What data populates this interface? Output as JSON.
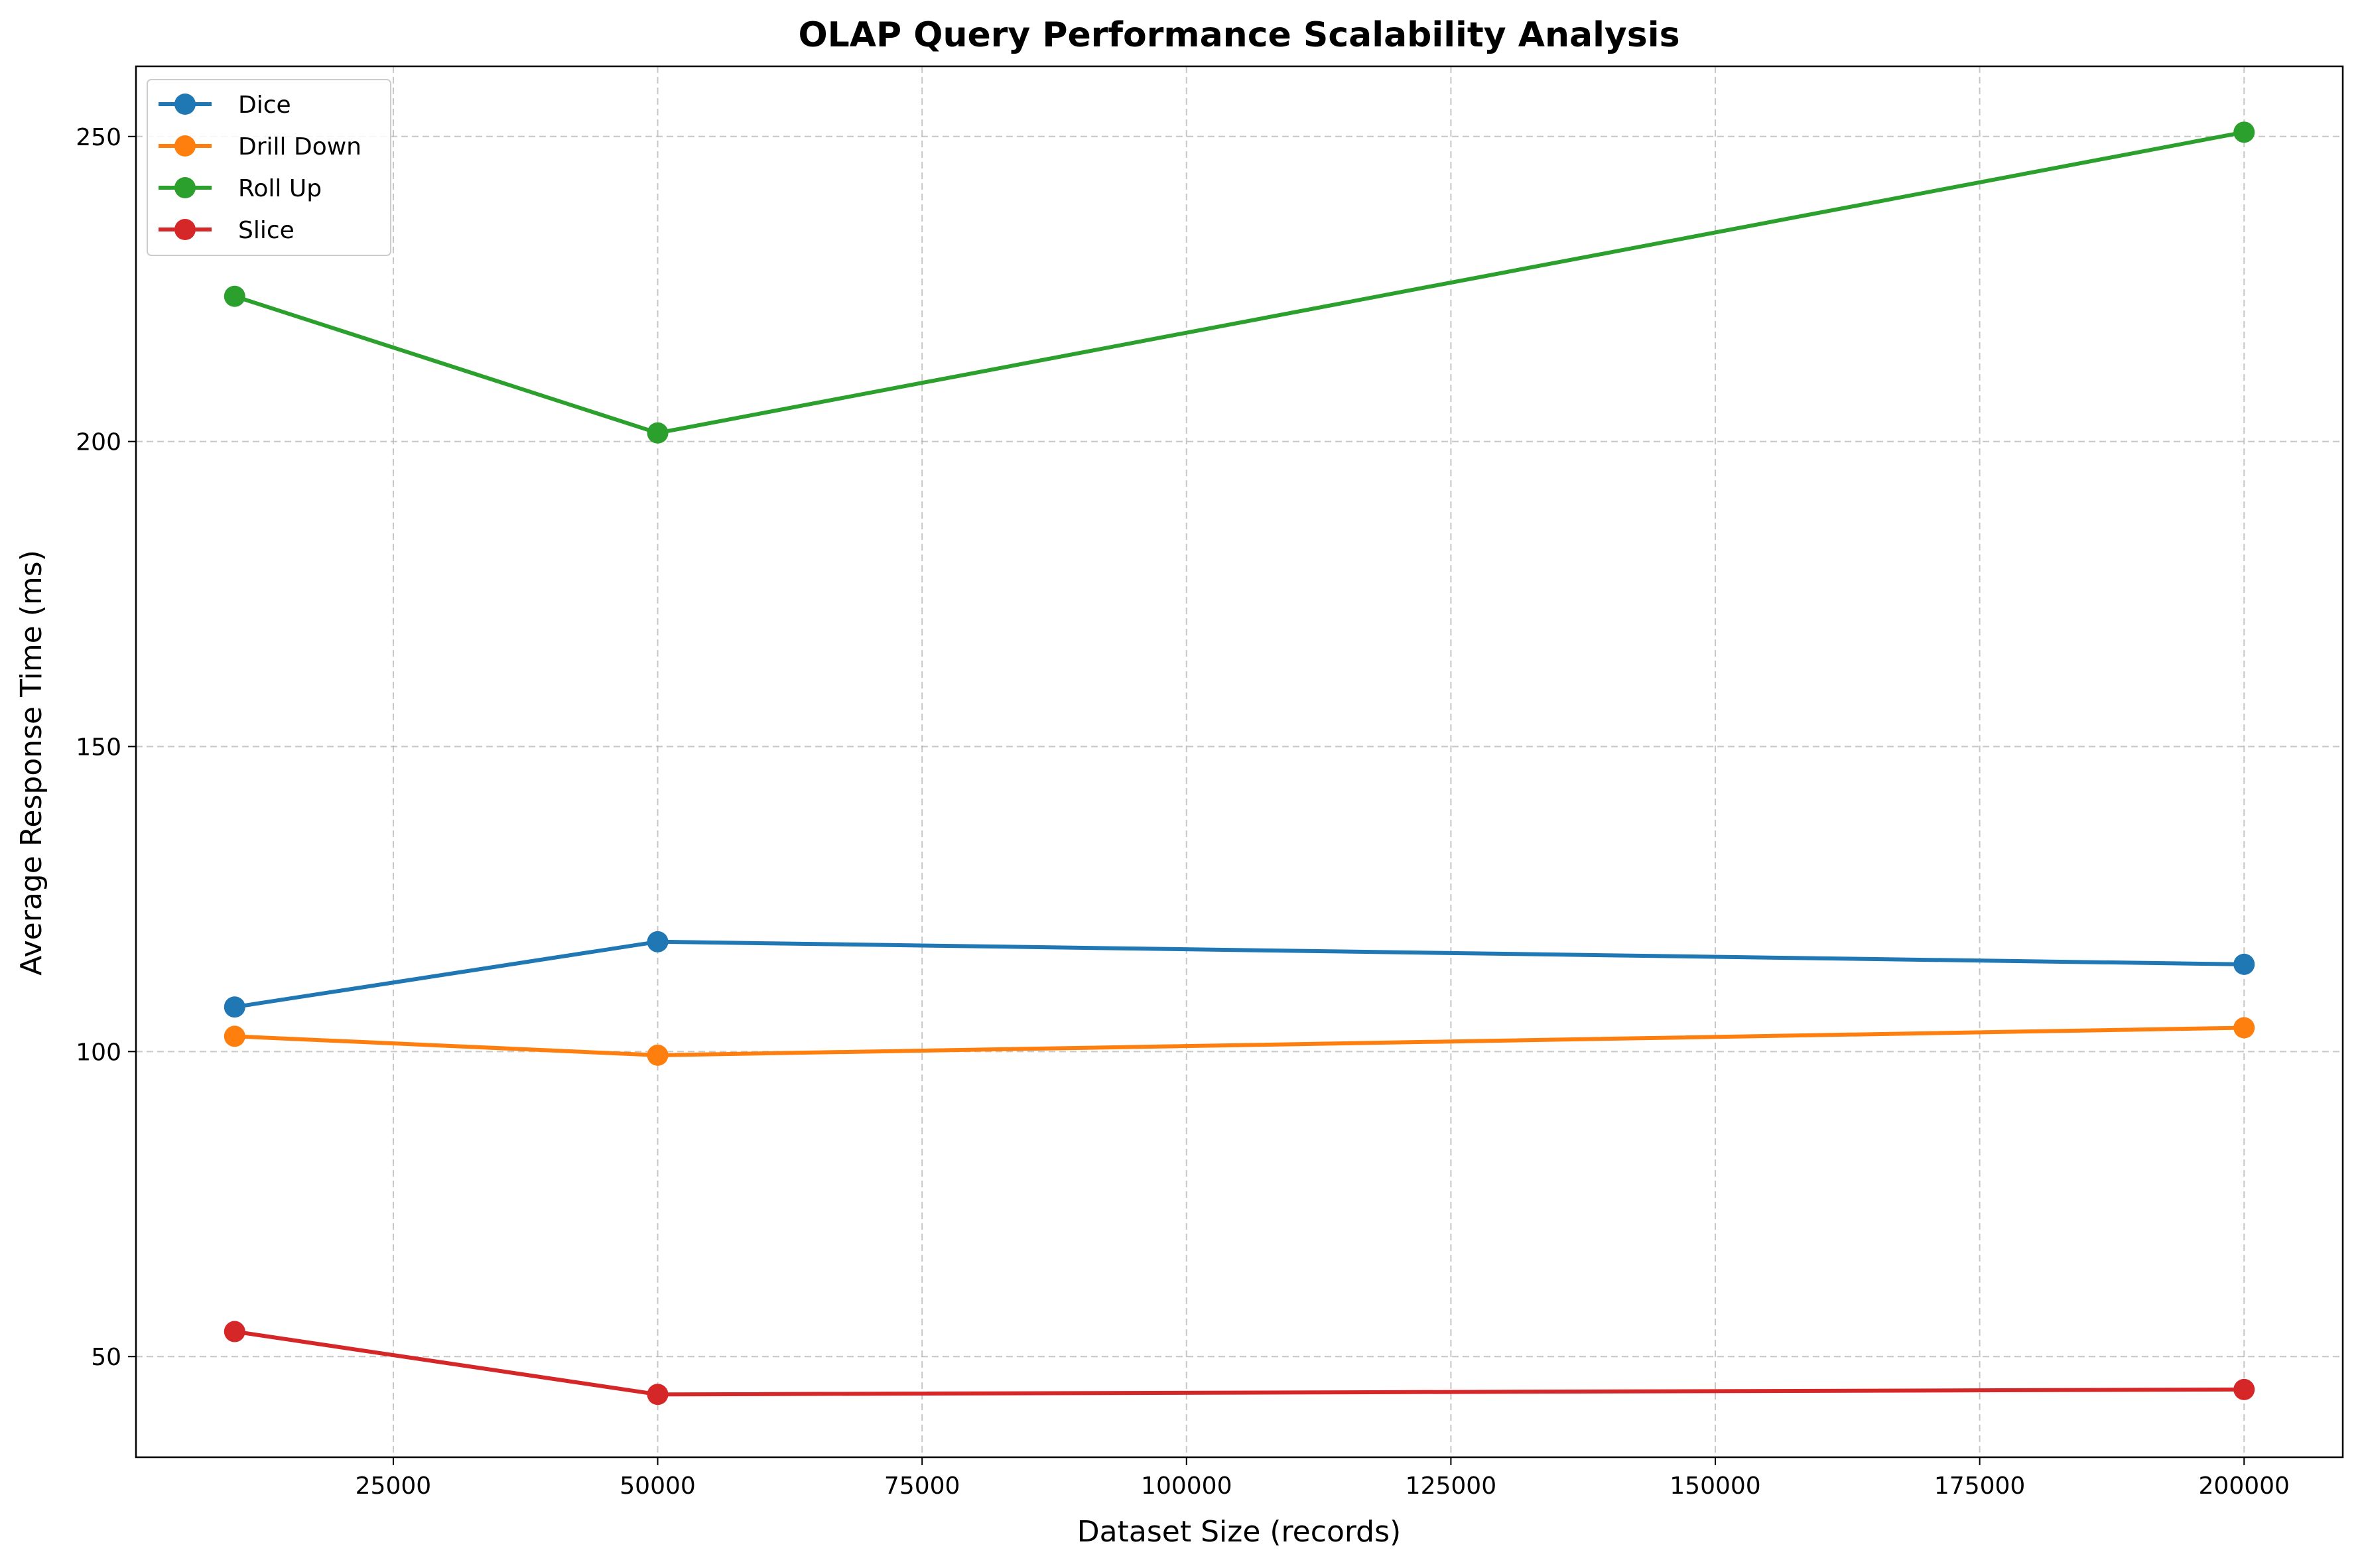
{
  "chart_data": {
    "type": "line",
    "title": "OLAP Query Performance Scalability Analysis",
    "xlabel": "Dataset Size (records)",
    "ylabel": "Average Response Time (ms)",
    "x": [
      10000,
      50000,
      200000
    ],
    "xlim": [
      670,
      209330
    ],
    "ylim": [
      33.5,
      261.5
    ],
    "xticks": [
      25000,
      50000,
      75000,
      100000,
      125000,
      150000,
      175000,
      200000
    ],
    "xtick_labels": [
      "25000",
      "50000",
      "75000",
      "100000",
      "125000",
      "150000",
      "175000",
      "200000"
    ],
    "yticks": [
      50,
      100,
      150,
      200,
      250
    ],
    "ytick_labels": [
      "50",
      "100",
      "150",
      "200",
      "250"
    ],
    "grid": true,
    "legend_position": "top-left",
    "series": [
      {
        "name": "Dice",
        "color": "#1f77b4",
        "values": [
          107.3,
          118.0,
          114.3
        ]
      },
      {
        "name": "Drill Down",
        "color": "#ff7f0e",
        "values": [
          102.5,
          99.4,
          103.9
        ]
      },
      {
        "name": "Roll Up",
        "color": "#2ca02c",
        "values": [
          223.8,
          201.4,
          250.7
        ]
      },
      {
        "name": "Slice",
        "color": "#d62728",
        "values": [
          54.1,
          43.8,
          44.6
        ]
      }
    ]
  }
}
